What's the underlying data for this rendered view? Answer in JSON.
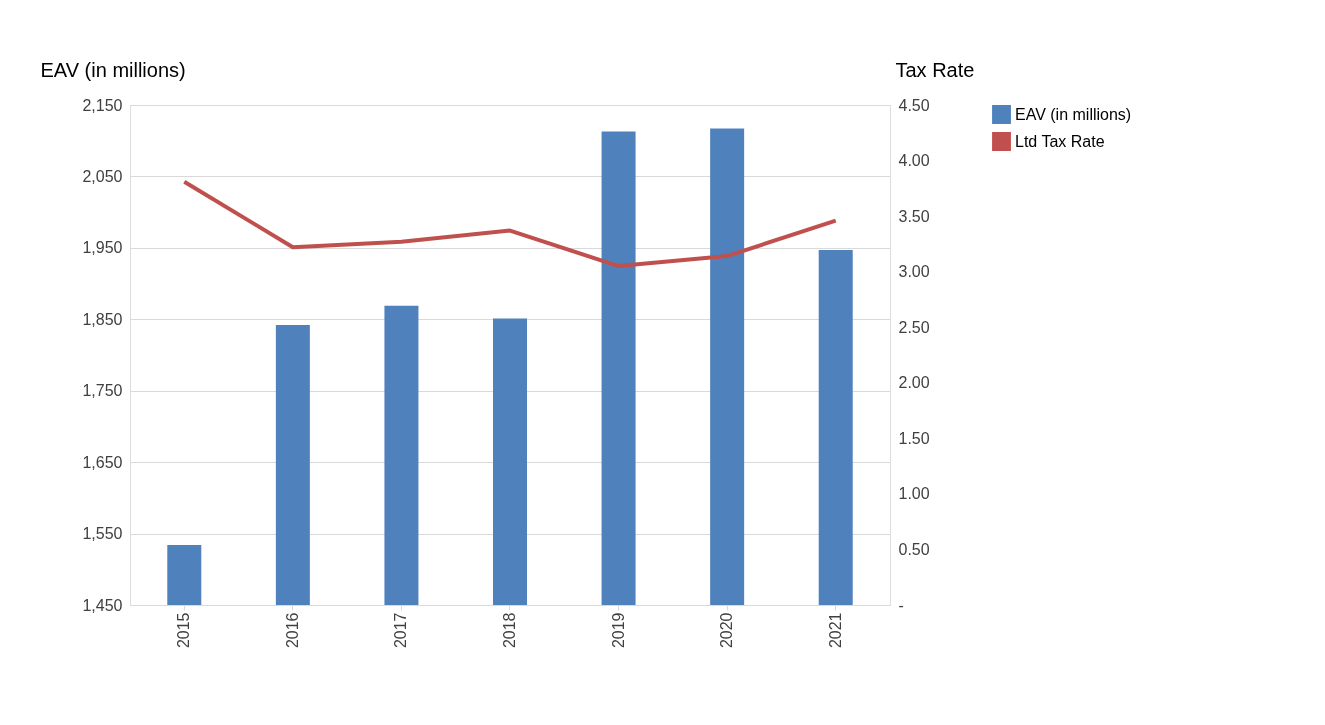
{
  "chart_data": {
    "type": "bar",
    "categories": [
      "2015",
      "2016",
      "2017",
      "2018",
      "2019",
      "2020",
      "2021"
    ],
    "series": [
      {
        "name": "EAV (in millions)",
        "color": "#4f81bd",
        "values": [
          1534,
          1842,
          1869,
          1851,
          2113,
          2117,
          1947
        ]
      },
      {
        "name": "Ltd Tax Rate",
        "type": "line",
        "axis": "y2",
        "color": "#c0504d",
        "values": [
          3.81,
          3.22,
          3.27,
          3.37,
          3.05,
          3.14,
          3.46
        ]
      }
    ],
    "ylabel": "EAV (in millions)",
    "y2label": "Tax Rate",
    "ylim": [
      1450,
      2150
    ],
    "yticks": [
      {
        "value": 1450,
        "label": "1,450"
      },
      {
        "value": 1550,
        "label": "1,550"
      },
      {
        "value": 1650,
        "label": "1,650"
      },
      {
        "value": 1750,
        "label": "1,750"
      },
      {
        "value": 1850,
        "label": "1,850"
      },
      {
        "value": 1950,
        "label": "1,950"
      },
      {
        "value": 2050,
        "label": "2,050"
      },
      {
        "value": 2150,
        "label": "2,150"
      }
    ],
    "y2lim": [
      0,
      4.5
    ],
    "y2ticks": [
      {
        "value": 0,
        "label": "-"
      },
      {
        "value": 0.5,
        "label": "0.50"
      },
      {
        "value": 1,
        "label": "1.00"
      },
      {
        "value": 1.5,
        "label": "1.50"
      },
      {
        "value": 2,
        "label": "2.00"
      },
      {
        "value": 2.5,
        "label": "2.50"
      },
      {
        "value": 3,
        "label": "3.00"
      },
      {
        "value": 3.5,
        "label": "3.50"
      },
      {
        "value": 4,
        "label": "4.00"
      },
      {
        "value": 4.5,
        "label": "4.50"
      }
    ],
    "grid": "y",
    "legend": "right",
    "line_style": "solid",
    "marker": "none"
  }
}
